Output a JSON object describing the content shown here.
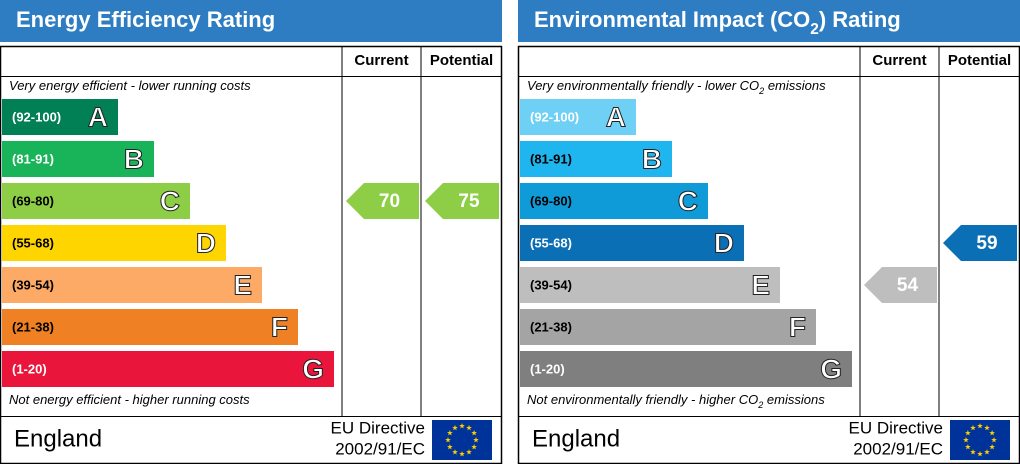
{
  "panels": [
    {
      "title": [
        "Energy Efficiency Rating"
      ],
      "current_label": "Current",
      "potential_label": "Potential",
      "top_note": [
        "Very energy efficient - lower running costs"
      ],
      "bottom_note": [
        "Not energy efficient - higher running costs"
      ],
      "bands": [
        {
          "range": "(92-100)",
          "letter": "A",
          "color": "#008054"
        },
        {
          "range": "(81-91)",
          "letter": "B",
          "color": "#19b459"
        },
        {
          "range": "(69-80)",
          "letter": "C",
          "color": "#8dce46"
        },
        {
          "range": "(55-68)",
          "letter": "D",
          "color": "#ffd500"
        },
        {
          "range": "(39-54)",
          "letter": "E",
          "color": "#fcaa65"
        },
        {
          "range": "(21-38)",
          "letter": "F",
          "color": "#ef8023"
        },
        {
          "range": "(1-20)",
          "letter": "G",
          "color": "#e9153b"
        }
      ],
      "current": 70,
      "potential": 75,
      "country": "England",
      "directive": [
        "EU Directive",
        "2002/91/EC"
      ]
    },
    {
      "title": [
        "Environmental Impact (CO",
        "2",
        ") Rating"
      ],
      "current_label": "Current",
      "potential_label": "Potential",
      "top_note": [
        "Very environmentally friendly - lower CO",
        "2",
        " emissions"
      ],
      "bottom_note": [
        "Not environmentally friendly - higher CO",
        "2",
        " emissions"
      ],
      "bands": [
        {
          "range": "(92-100)",
          "letter": "A",
          "color": "#6fd0f6"
        },
        {
          "range": "(81-91)",
          "letter": "B",
          "color": "#1fb6f0"
        },
        {
          "range": "(69-80)",
          "letter": "C",
          "color": "#0e9bd8"
        },
        {
          "range": "(55-68)",
          "letter": "D",
          "color": "#0b6fb5"
        },
        {
          "range": "(39-54)",
          "letter": "E",
          "color": "#bebebe"
        },
        {
          "range": "(21-38)",
          "letter": "F",
          "color": "#a4a4a4"
        },
        {
          "range": "(1-20)",
          "letter": "G",
          "color": "#7f7f7f"
        }
      ],
      "current": 54,
      "potential": 59,
      "country": "England",
      "directive": [
        "EU Directive",
        "2002/91/EC"
      ]
    }
  ]
}
